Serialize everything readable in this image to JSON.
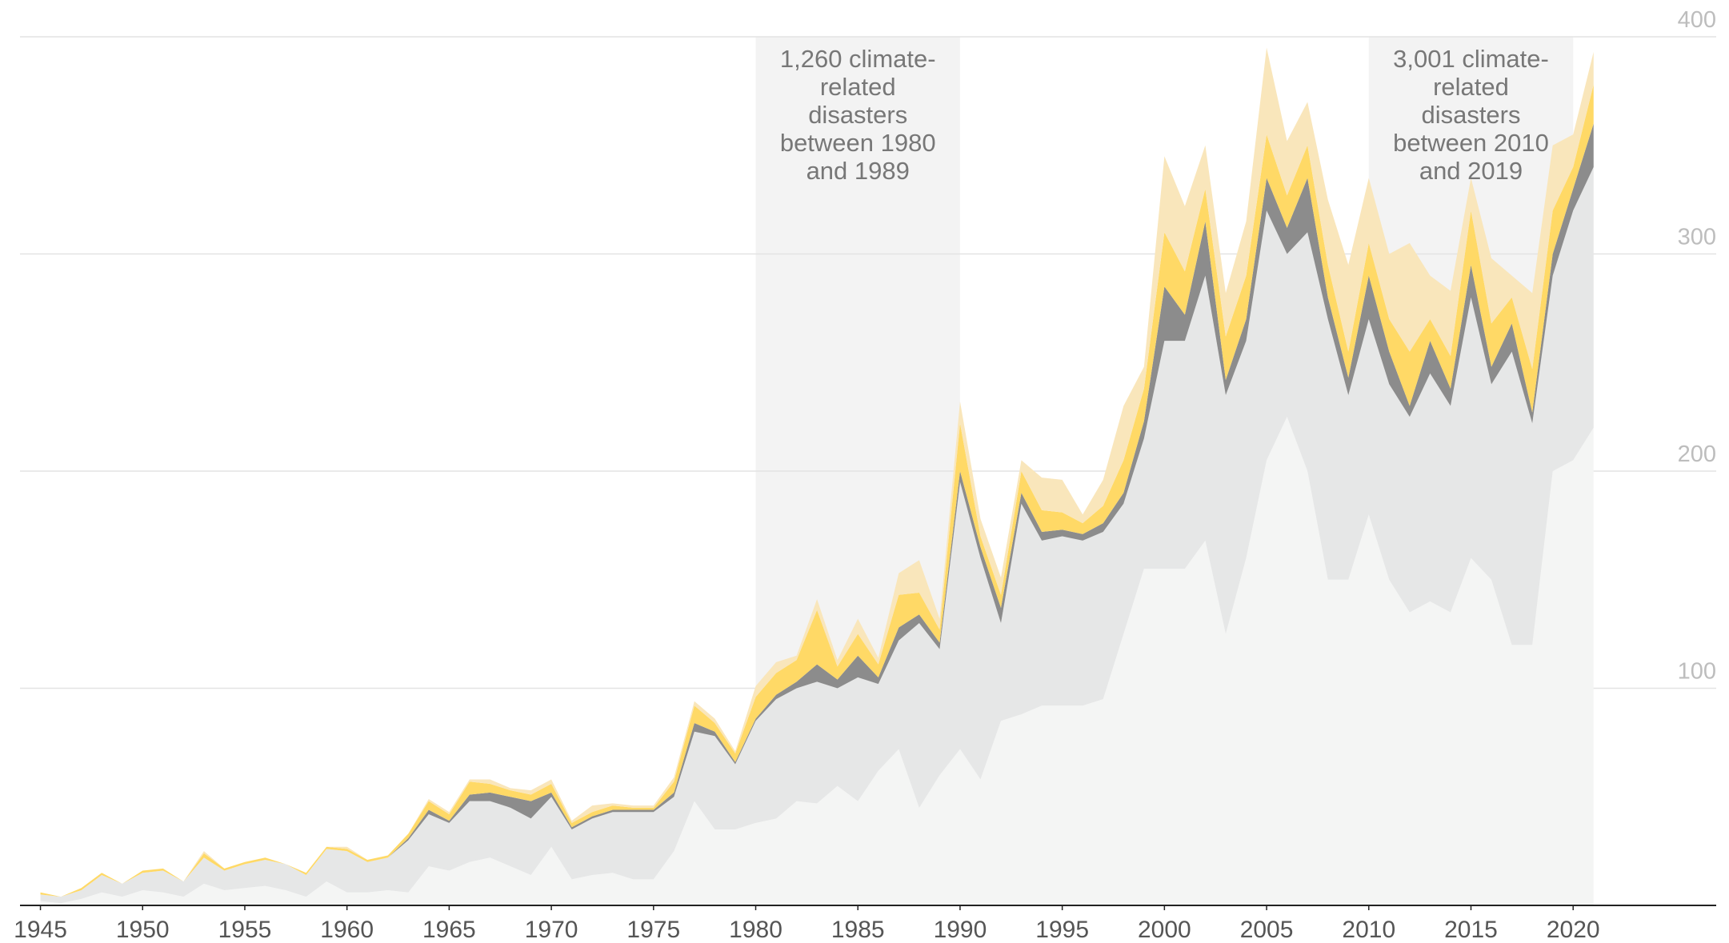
{
  "chart_data": {
    "type": "stacked_area",
    "x": [
      1945,
      1946,
      1947,
      1948,
      1949,
      1950,
      1951,
      1952,
      1953,
      1954,
      1955,
      1956,
      1957,
      1958,
      1959,
      1960,
      1961,
      1962,
      1963,
      1964,
      1965,
      1966,
      1967,
      1968,
      1969,
      1970,
      1971,
      1972,
      1973,
      1974,
      1975,
      1976,
      1977,
      1978,
      1979,
      1980,
      1981,
      1982,
      1983,
      1984,
      1985,
      1986,
      1987,
      1988,
      1989,
      1990,
      1991,
      1992,
      1993,
      1994,
      1995,
      1996,
      1997,
      1998,
      1999,
      2000,
      2001,
      2002,
      2003,
      2004,
      2005,
      2006,
      2007,
      2008,
      2009,
      2010,
      2011,
      2012,
      2013,
      2014,
      2015,
      2016,
      2017,
      2018,
      2019,
      2020,
      2021
    ],
    "series": [
      {
        "color": "#f4f5f4",
        "values": [
          2,
          1,
          3,
          6,
          4,
          7,
          6,
          4,
          10,
          7,
          8,
          9,
          7,
          4,
          11,
          6,
          6,
          7,
          6,
          18,
          16,
          20,
          22,
          18,
          14,
          27,
          12,
          14,
          15,
          12,
          12,
          25,
          48,
          35,
          35,
          38,
          40,
          48,
          47,
          55,
          48,
          62,
          72,
          45,
          60,
          72,
          58,
          85,
          88,
          92,
          92,
          92,
          95,
          125,
          155,
          155,
          155,
          168,
          125,
          160,
          205,
          225,
          200,
          150,
          150,
          180,
          150,
          135,
          140,
          135,
          160,
          150,
          120,
          120,
          200,
          205,
          220
        ]
      },
      {
        "color": "#e6e7e7",
        "values": [
          3,
          3,
          4,
          8,
          6,
          8,
          10,
          7,
          12,
          9,
          11,
          12,
          12,
          10,
          15,
          19,
          14,
          15,
          24,
          24,
          22,
          28,
          26,
          27,
          26,
          23,
          23,
          26,
          28,
          31,
          31,
          25,
          32,
          43,
          30,
          47,
          55,
          52,
          56,
          45,
          57,
          40,
          50,
          85,
          58,
          123,
          102,
          45,
          97,
          76,
          78,
          76,
          77,
          60,
          60,
          105,
          105,
          122,
          110,
          100,
          115,
          75,
          110,
          120,
          85,
          90,
          90,
          90,
          105,
          95,
          120,
          90,
          135,
          102,
          90,
          115,
          120
        ]
      },
      {
        "color": "#8c8c8c",
        "values": [
          0,
          0,
          0,
          0,
          0,
          0,
          0,
          0,
          0,
          0,
          0,
          0,
          0,
          0,
          0,
          0,
          0,
          0,
          1,
          2,
          1,
          3,
          4,
          5,
          8,
          2,
          1,
          1,
          1,
          1,
          1,
          2,
          4,
          2,
          1,
          1,
          2,
          3,
          8,
          4,
          10,
          3,
          6,
          4,
          3,
          5,
          5,
          7,
          5,
          4,
          3,
          3,
          4,
          5,
          8,
          25,
          12,
          25,
          7,
          10,
          15,
          12,
          25,
          10,
          8,
          20,
          15,
          5,
          15,
          8,
          15,
          8,
          13,
          5,
          10,
          10,
          20
        ]
      },
      {
        "color": "#ffd966",
        "values": [
          1,
          0,
          1,
          1,
          0,
          1,
          1,
          0,
          2,
          1,
          1,
          1,
          0,
          1,
          1,
          1,
          1,
          1,
          2,
          4,
          3,
          6,
          4,
          3,
          3,
          4,
          2,
          2,
          2,
          1,
          1,
          5,
          8,
          4,
          4,
          10,
          10,
          10,
          25,
          6,
          10,
          6,
          15,
          10,
          6,
          22,
          5,
          6,
          10,
          10,
          8,
          5,
          8,
          15,
          15,
          25,
          20,
          15,
          20,
          20,
          20,
          15,
          15,
          15,
          12,
          15,
          15,
          25,
          10,
          15,
          25,
          20,
          12,
          20,
          20,
          10,
          18
        ]
      },
      {
        "color": "#f9e6bb",
        "values": [
          0,
          0,
          0,
          0,
          0,
          0,
          0,
          0,
          1,
          0,
          0,
          0,
          0,
          0,
          0,
          1,
          0,
          0,
          0,
          1,
          1,
          1,
          2,
          1,
          2,
          2,
          1,
          3,
          1,
          1,
          1,
          2,
          2,
          2,
          1,
          5,
          5,
          2,
          5,
          3,
          7,
          3,
          10,
          15,
          5,
          10,
          8,
          8,
          5,
          15,
          15,
          4,
          12,
          25,
          10,
          35,
          30,
          20,
          20,
          25,
          40,
          25,
          20,
          30,
          40,
          30,
          30,
          50,
          20,
          30,
          15,
          30,
          10,
          35,
          30,
          15,
          15
        ]
      }
    ],
    "annotations": [
      {
        "x": [
          1980,
          1990
        ],
        "text": "1,260 climate-related disasters between 1980 and 1989"
      },
      {
        "x": [
          2010,
          2020
        ],
        "text": "3,001 climate-related disasters between 2010 and 2019"
      }
    ],
    "xlim": [
      1944,
      2027
    ],
    "xticks": [
      1945,
      1950,
      1955,
      1960,
      1965,
      1970,
      1975,
      1980,
      1985,
      1990,
      1995,
      2000,
      2005,
      2010,
      2015,
      2020
    ],
    "ylim": [
      0,
      400
    ],
    "yticks": [
      100,
      200,
      300,
      400
    ],
    "grid": true
  }
}
